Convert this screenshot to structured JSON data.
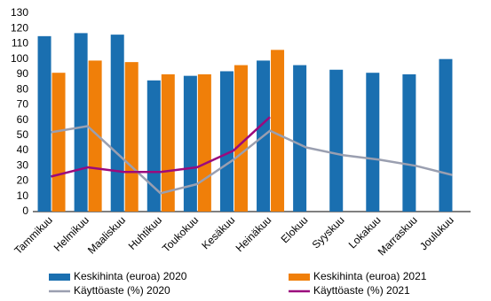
{
  "chart_data": {
    "type": "bar",
    "categories": [
      "Tammikuu",
      "Helmikuu",
      "Maaliskuu",
      "Huhtikuu",
      "Toukokuu",
      "Kesäkuu",
      "Heinäkuu",
      "Elokuu",
      "Syyskuu",
      "Lokakuu",
      "Marraskuu",
      "Joulukuu"
    ],
    "series": [
      {
        "name": "Keskihinta (euroa) 2020",
        "type": "bar",
        "color": "#1a6fb0",
        "values": [
          115,
          117,
          116,
          86,
          89,
          92,
          99,
          96,
          93,
          91,
          90,
          100
        ]
      },
      {
        "name": "Keskihinta (euroa) 2021",
        "type": "bar",
        "color": "#f07f09",
        "values": [
          91,
          99,
          98,
          90,
          90,
          96,
          106,
          null,
          null,
          null,
          null,
          null
        ]
      },
      {
        "name": "Käyttöaste (%) 2020",
        "type": "line",
        "color": "#9a9fb0",
        "values": [
          52,
          56,
          34,
          12,
          18,
          34,
          53,
          42,
          37,
          34,
          30,
          24
        ]
      },
      {
        "name": "Käyttöaste (%) 2021",
        "type": "line",
        "color": "#9b0a7d",
        "values": [
          23,
          29,
          26,
          26,
          29,
          40,
          62,
          null,
          null,
          null,
          null,
          null
        ]
      }
    ],
    "ylim": [
      0,
      130
    ],
    "yticks": [
      0,
      10,
      20,
      30,
      40,
      50,
      60,
      70,
      80,
      90,
      100,
      110,
      120,
      130
    ],
    "grid": false
  }
}
